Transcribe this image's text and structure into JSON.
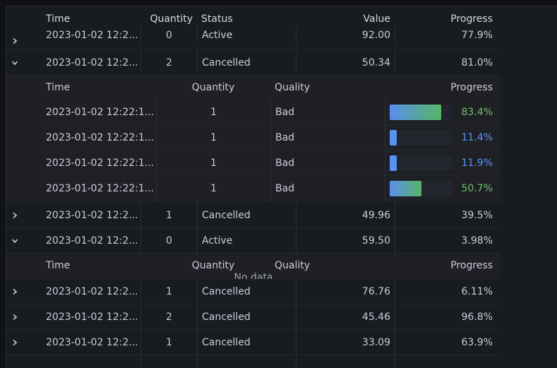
{
  "columns": {
    "time": "Time",
    "quantity": "Quantity",
    "status": "Status",
    "value": "Value",
    "progress": "Progress"
  },
  "nested_columns": {
    "time": "Time",
    "quantity": "Quantity",
    "quality": "Quality",
    "progress": "Progress"
  },
  "rows": [
    {
      "time": "2023-01-02 12:2...",
      "quantity": "0",
      "status": "Active",
      "value": "92.00",
      "progress": "77.9%"
    },
    {
      "time": "2023-01-02 12:2...",
      "quantity": "2",
      "status": "Cancelled",
      "value": "50.34",
      "progress": "81.0%"
    },
    {
      "time": "2023-01-02 12:2...",
      "quantity": "1",
      "status": "Cancelled",
      "value": "49.96",
      "progress": "39.5%"
    },
    {
      "time": "2023-01-02 12:2...",
      "quantity": "0",
      "status": "Active",
      "value": "59.50",
      "progress": "3.98%"
    },
    {
      "time": "2023-01-02 12:2...",
      "quantity": "1",
      "status": "Cancelled",
      "value": "76.76",
      "progress": "6.11%"
    },
    {
      "time": "2023-01-02 12:2...",
      "quantity": "2",
      "status": "Cancelled",
      "value": "45.46",
      "progress": "96.8%"
    },
    {
      "time": "2023-01-02 12:2...",
      "quantity": "1",
      "status": "Cancelled",
      "value": "33.09",
      "progress": "63.9%"
    }
  ],
  "nested_rows": [
    {
      "time": "2023-01-02 12:22:1...",
      "quantity": "1",
      "quality": "Bad",
      "progress": "83.4%",
      "fill": 0.834,
      "color": "green"
    },
    {
      "time": "2023-01-02 12:22:1...",
      "quantity": "1",
      "quality": "Bad",
      "progress": "11.4%",
      "fill": 0.114,
      "color": "blue"
    },
    {
      "time": "2023-01-02 12:22:1...",
      "quantity": "1",
      "quality": "Bad",
      "progress": "11.9%",
      "fill": 0.119,
      "color": "blue"
    },
    {
      "time": "2023-01-02 12:22:1...",
      "quantity": "1",
      "quality": "Bad",
      "progress": "50.7%",
      "fill": 0.507,
      "color": "green"
    }
  ],
  "no_data_text": "No data",
  "icons": {
    "collapsed": "chevron-right-icon",
    "expanded": "chevron-down-icon"
  },
  "colors": {
    "background": "#111217",
    "panel": "#181b1f",
    "green": "#73bf69",
    "blue": "#5794f2"
  }
}
